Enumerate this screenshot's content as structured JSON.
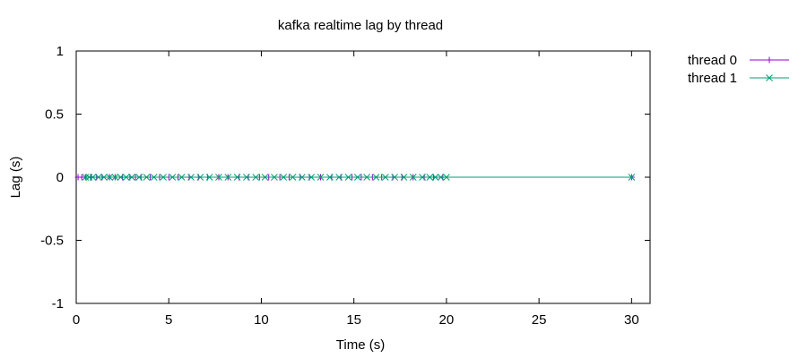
{
  "chart_data": {
    "type": "line",
    "title": "kafka realtime lag by thread",
    "xlabel": "Time (s)",
    "ylabel": "Lag (s)",
    "xlim": [
      0,
      31
    ],
    "ylim": [
      -1,
      1
    ],
    "x_ticks": [
      0,
      5,
      10,
      15,
      20,
      25,
      30
    ],
    "y_ticks": [
      -1,
      -0.5,
      0,
      0.5,
      1
    ],
    "x_tick_labels": [
      "0",
      "5",
      "10",
      "15",
      "20",
      "25",
      "30"
    ],
    "y_tick_labels": [
      "-1",
      "-0.5",
      "0",
      "0.5",
      "1"
    ],
    "grid": false,
    "legend_position": "top-right outside",
    "series": [
      {
        "name": "thread 0",
        "color": "#9400d3",
        "marker": "plus",
        "x": [
          0.1,
          0.3,
          0.5,
          0.8,
          1.1,
          1.4,
          1.8,
          2.1,
          2.5,
          2.9,
          3.2,
          3.5,
          4.0,
          4.5,
          5.0,
          5.5,
          6.1,
          6.6,
          7.1,
          7.7,
          8.2,
          8.8,
          9.3,
          9.9,
          10.4,
          11.0,
          11.5,
          12.1,
          12.6,
          13.2,
          13.8,
          14.3,
          14.9,
          15.4,
          16.0,
          16.5,
          17.1,
          17.6,
          18.2,
          18.8,
          19.3,
          19.8,
          30.0
        ],
        "y": [
          0,
          0,
          0,
          0,
          0,
          0,
          0,
          0,
          0,
          0,
          0,
          0,
          0,
          0,
          0,
          0,
          0,
          0,
          0,
          0,
          0,
          0,
          0,
          0,
          0,
          0,
          0,
          0,
          0,
          0,
          0,
          0,
          0,
          0,
          0,
          0,
          0,
          0,
          0,
          0,
          0,
          0,
          0
        ]
      },
      {
        "name": "thread 1",
        "color": "#009e73",
        "marker": "x",
        "x": [
          0.5,
          0.7,
          0.9,
          1.2,
          1.5,
          1.8,
          2.1,
          2.4,
          2.7,
          3.0,
          3.4,
          3.8,
          4.2,
          4.7,
          5.2,
          5.7,
          6.2,
          6.7,
          7.2,
          7.7,
          8.2,
          8.7,
          9.2,
          9.7,
          10.2,
          10.7,
          11.2,
          11.7,
          12.2,
          12.7,
          13.2,
          13.7,
          14.2,
          14.7,
          15.2,
          15.7,
          16.2,
          16.7,
          17.2,
          17.7,
          18.2,
          18.7,
          19.1,
          19.4,
          19.7,
          20.0,
          30.0
        ],
        "y": [
          0,
          0,
          0,
          0,
          0,
          0,
          0,
          0,
          0,
          0,
          0,
          0,
          0,
          0,
          0,
          0,
          0,
          0,
          0,
          0,
          0,
          0,
          0,
          0,
          0,
          0,
          0,
          0,
          0,
          0,
          0,
          0,
          0,
          0,
          0,
          0,
          0,
          0,
          0,
          0,
          0,
          0,
          0,
          0,
          0,
          0,
          0
        ]
      }
    ]
  }
}
